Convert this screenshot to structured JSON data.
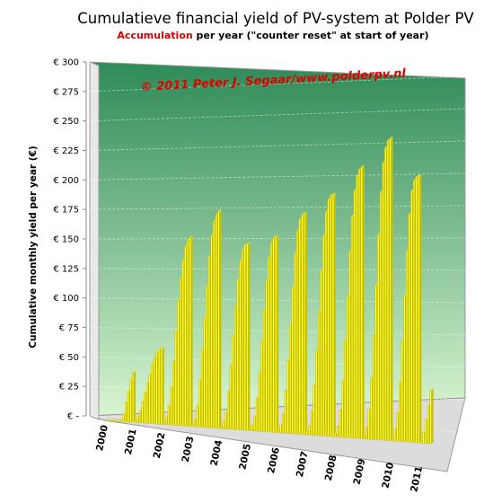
{
  "chart_data": {
    "type": "bar",
    "title": "Cumulatieve financial yield of PV-system at Polder PV",
    "subtitle_highlight": "Accumulation",
    "subtitle_rest": " per year (\"counter reset\" at start of year)",
    "ylabel": "Cumulative monthly yield per year (€)",
    "xlabel": "",
    "watermark": "© 2011 Peter J. Segaar/www.polderpv.nl",
    "ylim": [
      0,
      300
    ],
    "y_ticks": [
      {
        "value": 0,
        "label": "€ -"
      },
      {
        "value": 25,
        "label": "€ 25"
      },
      {
        "value": 50,
        "label": "€ 50"
      },
      {
        "value": 75,
        "label": "€ 75"
      },
      {
        "value": 100,
        "label": "€ 100"
      },
      {
        "value": 125,
        "label": "€ 125"
      },
      {
        "value": 150,
        "label": "€ 150"
      },
      {
        "value": 175,
        "label": "€ 175"
      },
      {
        "value": 200,
        "label": "€ 200"
      },
      {
        "value": 225,
        "label": "€ 225"
      },
      {
        "value": 250,
        "label": "€ 250"
      },
      {
        "value": 275,
        "label": "€ 275"
      },
      {
        "value": 300,
        "label": "€ 300"
      }
    ],
    "grid": true,
    "colors": {
      "bar_fill": "#ffff33",
      "bar_edge": "#b5a800",
      "wall_top": "#2e8b57",
      "wall_bottom": "#d8f5d0",
      "floor": "#dcdcdc",
      "subtitle_highlight": "#d40000",
      "watermark": "#e00000"
    },
    "series": [
      {
        "year": "2000",
        "values": [
          0,
          0,
          0,
          0,
          0,
          0,
          1,
          6,
          16,
          26,
          36,
          42
        ]
      },
      {
        "year": "2001",
        "values": [
          2,
          5,
          10,
          18,
          26,
          34,
          42,
          50,
          56,
          61,
          63,
          64
        ]
      },
      {
        "year": "2002",
        "values": [
          2,
          6,
          16,
          32,
          54,
          80,
          106,
          125,
          140,
          152,
          158,
          160
        ]
      },
      {
        "year": "2003",
        "values": [
          2,
          6,
          18,
          40,
          66,
          93,
          120,
          145,
          163,
          175,
          181,
          184
        ]
      },
      {
        "year": "2004",
        "values": [
          2,
          6,
          14,
          32,
          54,
          80,
          105,
          127,
          143,
          153,
          157,
          158
        ]
      },
      {
        "year": "2005",
        "values": [
          2,
          5,
          12,
          28,
          50,
          76,
          103,
          128,
          148,
          160,
          165,
          166
        ]
      },
      {
        "year": "2006",
        "values": [
          2,
          7,
          16,
          36,
          62,
          92,
          124,
          153,
          172,
          182,
          186,
          187
        ]
      },
      {
        "year": "2007",
        "values": [
          3,
          8,
          20,
          42,
          72,
          105,
          140,
          170,
          190,
          200,
          204,
          205
        ]
      },
      {
        "year": "2008",
        "values": [
          3,
          9,
          23,
          48,
          82,
          120,
          158,
          188,
          210,
          222,
          228,
          230
        ]
      },
      {
        "year": "2009",
        "values": [
          3,
          10,
          25,
          52,
          89,
          131,
          174,
          210,
          235,
          248,
          254,
          256
        ]
      },
      {
        "year": "2010",
        "values": [
          3,
          10,
          24,
          50,
          85,
          124,
          162,
          193,
          213,
          222,
          225,
          226
        ]
      },
      {
        "year": "2011",
        "values": [
          2,
          9,
          20,
          32,
          45
        ]
      }
    ],
    "x_labels": [
      "2000",
      "2001",
      "2002",
      "2003",
      "2004",
      "2005",
      "2006",
      "2007",
      "2008",
      "2009",
      "2010",
      "2011"
    ]
  }
}
